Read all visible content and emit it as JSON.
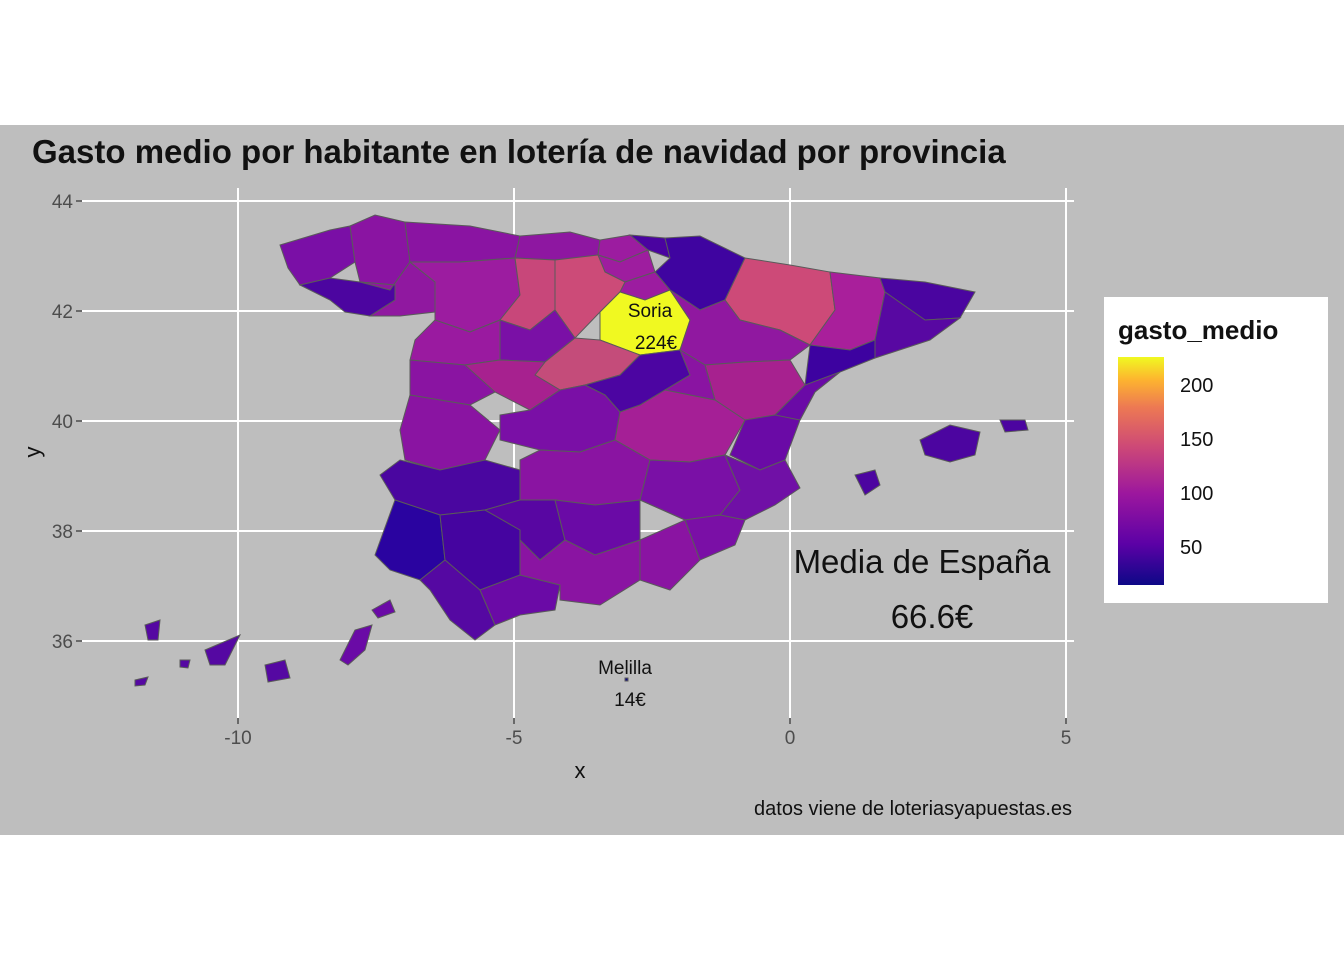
{
  "title": "Gasto medio por habitante en lotería de navidad por provincia",
  "axes": {
    "x_label": "x",
    "y_label": "y",
    "x_ticks": [
      "-10",
      "-5",
      "0",
      "5"
    ],
    "y_ticks": [
      "44",
      "42",
      "40",
      "38",
      "36"
    ]
  },
  "annotations": {
    "soria_name": "Soria",
    "soria_value": "224€",
    "melilla_name": "Melilla",
    "melilla_value": "14€",
    "media_label": "Media de España",
    "media_value": "66.6€"
  },
  "caption": "datos viene de loteriasyapuestas.es",
  "legend": {
    "title": "gasto_medio",
    "labels": [
      "200",
      "150",
      "100",
      "50"
    ],
    "palette": [
      "#0d0887",
      "#5c01a6",
      "#9c179e",
      "#cc4778",
      "#ed7953",
      "#fdb42f",
      "#f0f921"
    ]
  },
  "colors": {
    "background": "#bebebe",
    "gridline": "#ffffff",
    "border": "#5a5a5a"
  }
}
